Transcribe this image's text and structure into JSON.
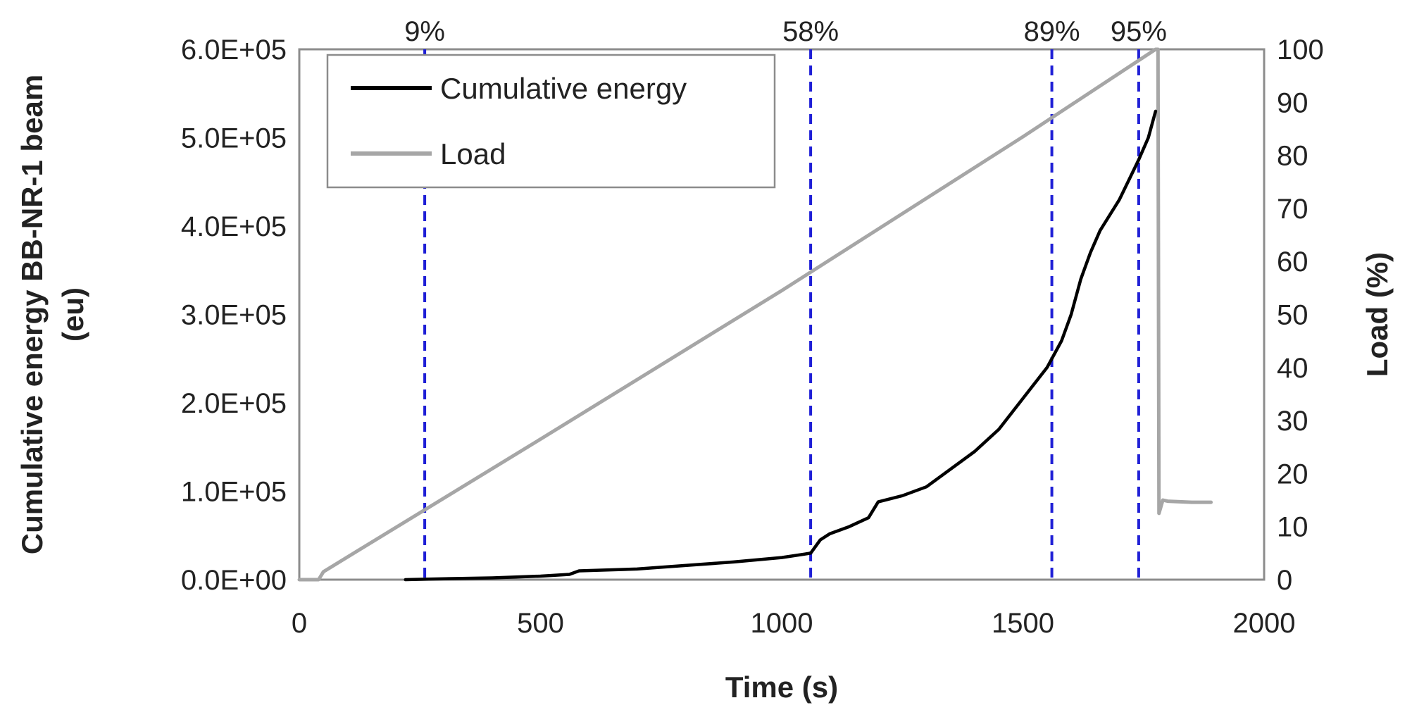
{
  "chart_data": {
    "type": "line",
    "title": "",
    "xlabel": "Time (s)",
    "ylabel_left": "Cumulative energy BB-NR-1 beam",
    "ylabel_left_unit": "(eu)",
    "ylabel_right": "Load (%)",
    "xlim": [
      0,
      2000
    ],
    "ylim_left": [
      0,
      600000
    ],
    "ylim_right": [
      0,
      100
    ],
    "x_ticks": [
      "0",
      "500",
      "1000",
      "1500",
      "2000"
    ],
    "x_tick_values": [
      0,
      500,
      1000,
      1500,
      2000
    ],
    "y_left_ticks": [
      "0.0E+00",
      "1.0E+05",
      "2.0E+05",
      "3.0E+05",
      "4.0E+05",
      "5.0E+05",
      "6.0E+05"
    ],
    "y_left_tick_values": [
      0,
      100000,
      200000,
      300000,
      400000,
      500000,
      600000
    ],
    "y_right_ticks": [
      "0",
      "10",
      "20",
      "30",
      "40",
      "50",
      "60",
      "70",
      "80",
      "90",
      "100"
    ],
    "y_right_tick_values": [
      0,
      10,
      20,
      30,
      40,
      50,
      60,
      70,
      80,
      90,
      100
    ],
    "legend": {
      "placement": "top-left",
      "entries": [
        {
          "label": "Cumulative energy",
          "color": "#000000"
        },
        {
          "label": "Load",
          "color": "#a6a6a6"
        }
      ]
    },
    "series": [
      {
        "name": "Cumulative energy",
        "axis": "left",
        "color": "#000000",
        "x": [
          220,
          300,
          400,
          500,
          560,
          580,
          700,
          800,
          900,
          1000,
          1060,
          1080,
          1100,
          1140,
          1180,
          1200,
          1250,
          1300,
          1350,
          1400,
          1450,
          1500,
          1550,
          1580,
          1600,
          1620,
          1640,
          1660,
          1700,
          1740,
          1760,
          1775
        ],
        "y": [
          0,
          1000,
          2000,
          4000,
          6000,
          10000,
          12000,
          16000,
          20000,
          25000,
          30000,
          45000,
          52000,
          60000,
          70000,
          88000,
          95000,
          105000,
          125000,
          145000,
          170000,
          205000,
          240000,
          270000,
          300000,
          340000,
          370000,
          395000,
          430000,
          475000,
          500000,
          530000
        ]
      },
      {
        "name": "Load",
        "axis": "right",
        "color": "#a6a6a6",
        "x": [
          0,
          40,
          50,
          500,
          1000,
          1500,
          1775,
          1780,
          1782,
          1790,
          1800,
          1850,
          1890
        ],
        "y": [
          0,
          0,
          1.5,
          26.5,
          54.5,
          83.5,
          100,
          100,
          12.5,
          15,
          14.8,
          14.6,
          14.6
        ]
      }
    ],
    "markers": [
      {
        "x": 260,
        "label": "9%",
        "color": "#1f1fd6"
      },
      {
        "x": 1060,
        "label": "58%",
        "color": "#1f1fd6"
      },
      {
        "x": 1560,
        "label": "89%",
        "color": "#1f1fd6"
      },
      {
        "x": 1740,
        "label": "95%",
        "color": "#1f1fd6"
      }
    ]
  }
}
